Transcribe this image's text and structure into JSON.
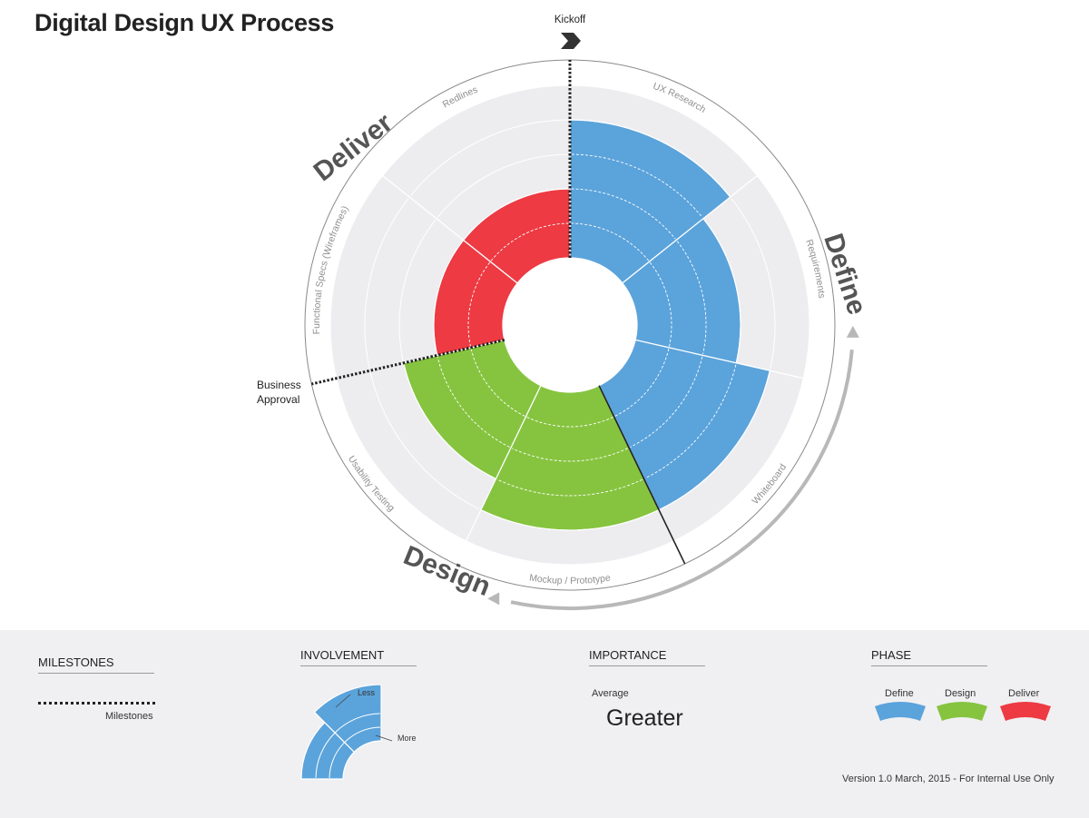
{
  "page": {
    "title": "Digital Design UX Process"
  },
  "diagram": {
    "kickoff_label": "Kickoff",
    "business_approval_lines": [
      "Business",
      "Approval"
    ],
    "phases": {
      "define": "Define",
      "design": "Design",
      "deliver": "Deliver"
    },
    "activities": [
      {
        "label": "UX Research",
        "phase": "define",
        "involvement_level": 4
      },
      {
        "label": "Requirements",
        "phase": "define",
        "involvement_level": 3
      },
      {
        "label": "Whiteboard",
        "phase": "define",
        "involvement_level": 4
      },
      {
        "label": "Mockup / Prototype",
        "phase": "design",
        "involvement_level": 4
      },
      {
        "label": "Usability Testing",
        "phase": "design",
        "involvement_level": 3
      },
      {
        "label": "Functional Specs (Wireframes)",
        "phase": "deliver",
        "involvement_level": 2
      },
      {
        "label": "Redlines",
        "phase": "deliver",
        "involvement_level": 2
      }
    ],
    "colors": {
      "define": "#5ba3db",
      "design": "#86c440",
      "deliver": "#ed3a43",
      "track": "#ededf0",
      "arrow": "#b8b8b8"
    }
  },
  "legend": {
    "milestones": {
      "heading": "MILESTONES",
      "label": "Milestones"
    },
    "involvement": {
      "heading": "INVOLVEMENT",
      "less": "Less",
      "more": "More"
    },
    "importance": {
      "heading": "IMPORTANCE",
      "average": "Average",
      "greater": "Greater"
    },
    "phase": {
      "heading": "PHASE",
      "items": [
        "Define",
        "Design",
        "Deliver"
      ]
    }
  },
  "footer": "Version 1.0 March, 2015 - For Internal Use Only"
}
